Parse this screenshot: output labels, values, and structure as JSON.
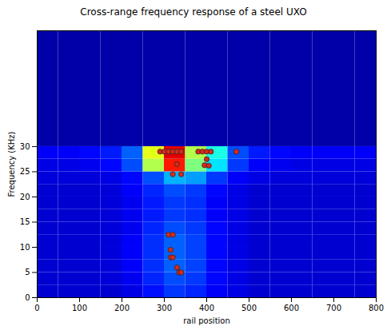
{
  "chart_data": {
    "type": "heatmap",
    "title": "Cross-range frequency response of a steel UXO",
    "xlabel": "rail position",
    "ylabel": "Frequency (KHz)",
    "xlim": [
      0,
      800
    ],
    "ylim": [
      0,
      53
    ],
    "xticks": [
      0,
      100,
      200,
      300,
      400,
      500,
      600,
      700,
      800
    ],
    "yticks": [
      0,
      5,
      10,
      15,
      20,
      25,
      30
    ],
    "x_edges": [
      0,
      50,
      100,
      150,
      200,
      250,
      300,
      350,
      400,
      450,
      500,
      550,
      600,
      650,
      700,
      750,
      800
    ],
    "y_edges": [
      0,
      2.5,
      5,
      7.5,
      10,
      12.5,
      15,
      17.5,
      20,
      22.5,
      25,
      27.5,
      30,
      53
    ],
    "zlim": [
      0,
      1
    ],
    "cells": [
      [
        0.08,
        0.08,
        0.08,
        0.08,
        0.1,
        0.14,
        0.18,
        0.16,
        0.12,
        0.1,
        0.08,
        0.08,
        0.08,
        0.08,
        0.08,
        0.08
      ],
      [
        0.08,
        0.08,
        0.08,
        0.09,
        0.11,
        0.16,
        0.2,
        0.18,
        0.13,
        0.1,
        0.08,
        0.08,
        0.08,
        0.08,
        0.08,
        0.08
      ],
      [
        0.08,
        0.08,
        0.08,
        0.09,
        0.12,
        0.17,
        0.22,
        0.19,
        0.13,
        0.1,
        0.08,
        0.08,
        0.08,
        0.08,
        0.08,
        0.08
      ],
      [
        0.08,
        0.08,
        0.08,
        0.09,
        0.12,
        0.17,
        0.22,
        0.19,
        0.13,
        0.1,
        0.08,
        0.08,
        0.08,
        0.08,
        0.08,
        0.08
      ],
      [
        0.08,
        0.08,
        0.08,
        0.09,
        0.12,
        0.17,
        0.22,
        0.19,
        0.13,
        0.1,
        0.08,
        0.08,
        0.08,
        0.08,
        0.08,
        0.08
      ],
      [
        0.08,
        0.08,
        0.08,
        0.09,
        0.11,
        0.16,
        0.2,
        0.18,
        0.13,
        0.1,
        0.08,
        0.08,
        0.08,
        0.08,
        0.08,
        0.08
      ],
      [
        0.08,
        0.08,
        0.08,
        0.09,
        0.11,
        0.15,
        0.18,
        0.17,
        0.12,
        0.1,
        0.08,
        0.08,
        0.08,
        0.08,
        0.08,
        0.08
      ],
      [
        0.08,
        0.08,
        0.08,
        0.09,
        0.11,
        0.15,
        0.18,
        0.17,
        0.12,
        0.1,
        0.08,
        0.08,
        0.08,
        0.08,
        0.08,
        0.08
      ],
      [
        0.08,
        0.08,
        0.08,
        0.09,
        0.12,
        0.16,
        0.2,
        0.18,
        0.13,
        0.1,
        0.08,
        0.08,
        0.08,
        0.08,
        0.08,
        0.08
      ],
      [
        0.09,
        0.09,
        0.09,
        0.1,
        0.13,
        0.2,
        0.3,
        0.28,
        0.18,
        0.12,
        0.1,
        0.09,
        0.09,
        0.09,
        0.09,
        0.09
      ],
      [
        0.1,
        0.1,
        0.11,
        0.13,
        0.2,
        0.55,
        0.85,
        0.5,
        0.35,
        0.18,
        0.12,
        0.11,
        0.1,
        0.1,
        0.1,
        0.1
      ],
      [
        0.12,
        0.12,
        0.13,
        0.15,
        0.22,
        0.6,
        0.9,
        0.55,
        0.4,
        0.2,
        0.15,
        0.13,
        0.12,
        0.12,
        0.12,
        0.12
      ],
      [
        0.04,
        0.04,
        0.04,
        0.04,
        0.04,
        0.04,
        0.04,
        0.04,
        0.04,
        0.04,
        0.04,
        0.04,
        0.04,
        0.04,
        0.04,
        0.04
      ]
    ],
    "series": [
      {
        "type": "scatter",
        "color": "#d42a1e",
        "marker": "circle",
        "x": [
          290,
          300,
          310,
          320,
          330,
          340,
          380,
          390,
          400,
          410,
          470,
          330,
          395,
          405,
          400,
          320,
          340,
          310,
          320,
          315,
          315,
          320,
          330,
          335,
          340
        ],
        "values": [
          29,
          29,
          29,
          29,
          29,
          29,
          29,
          29,
          29,
          29,
          29,
          26.5,
          26.3,
          26.2,
          27.5,
          24.5,
          24.5,
          12.5,
          12.5,
          9.5,
          8,
          8,
          6,
          5,
          5
        ]
      }
    ]
  }
}
